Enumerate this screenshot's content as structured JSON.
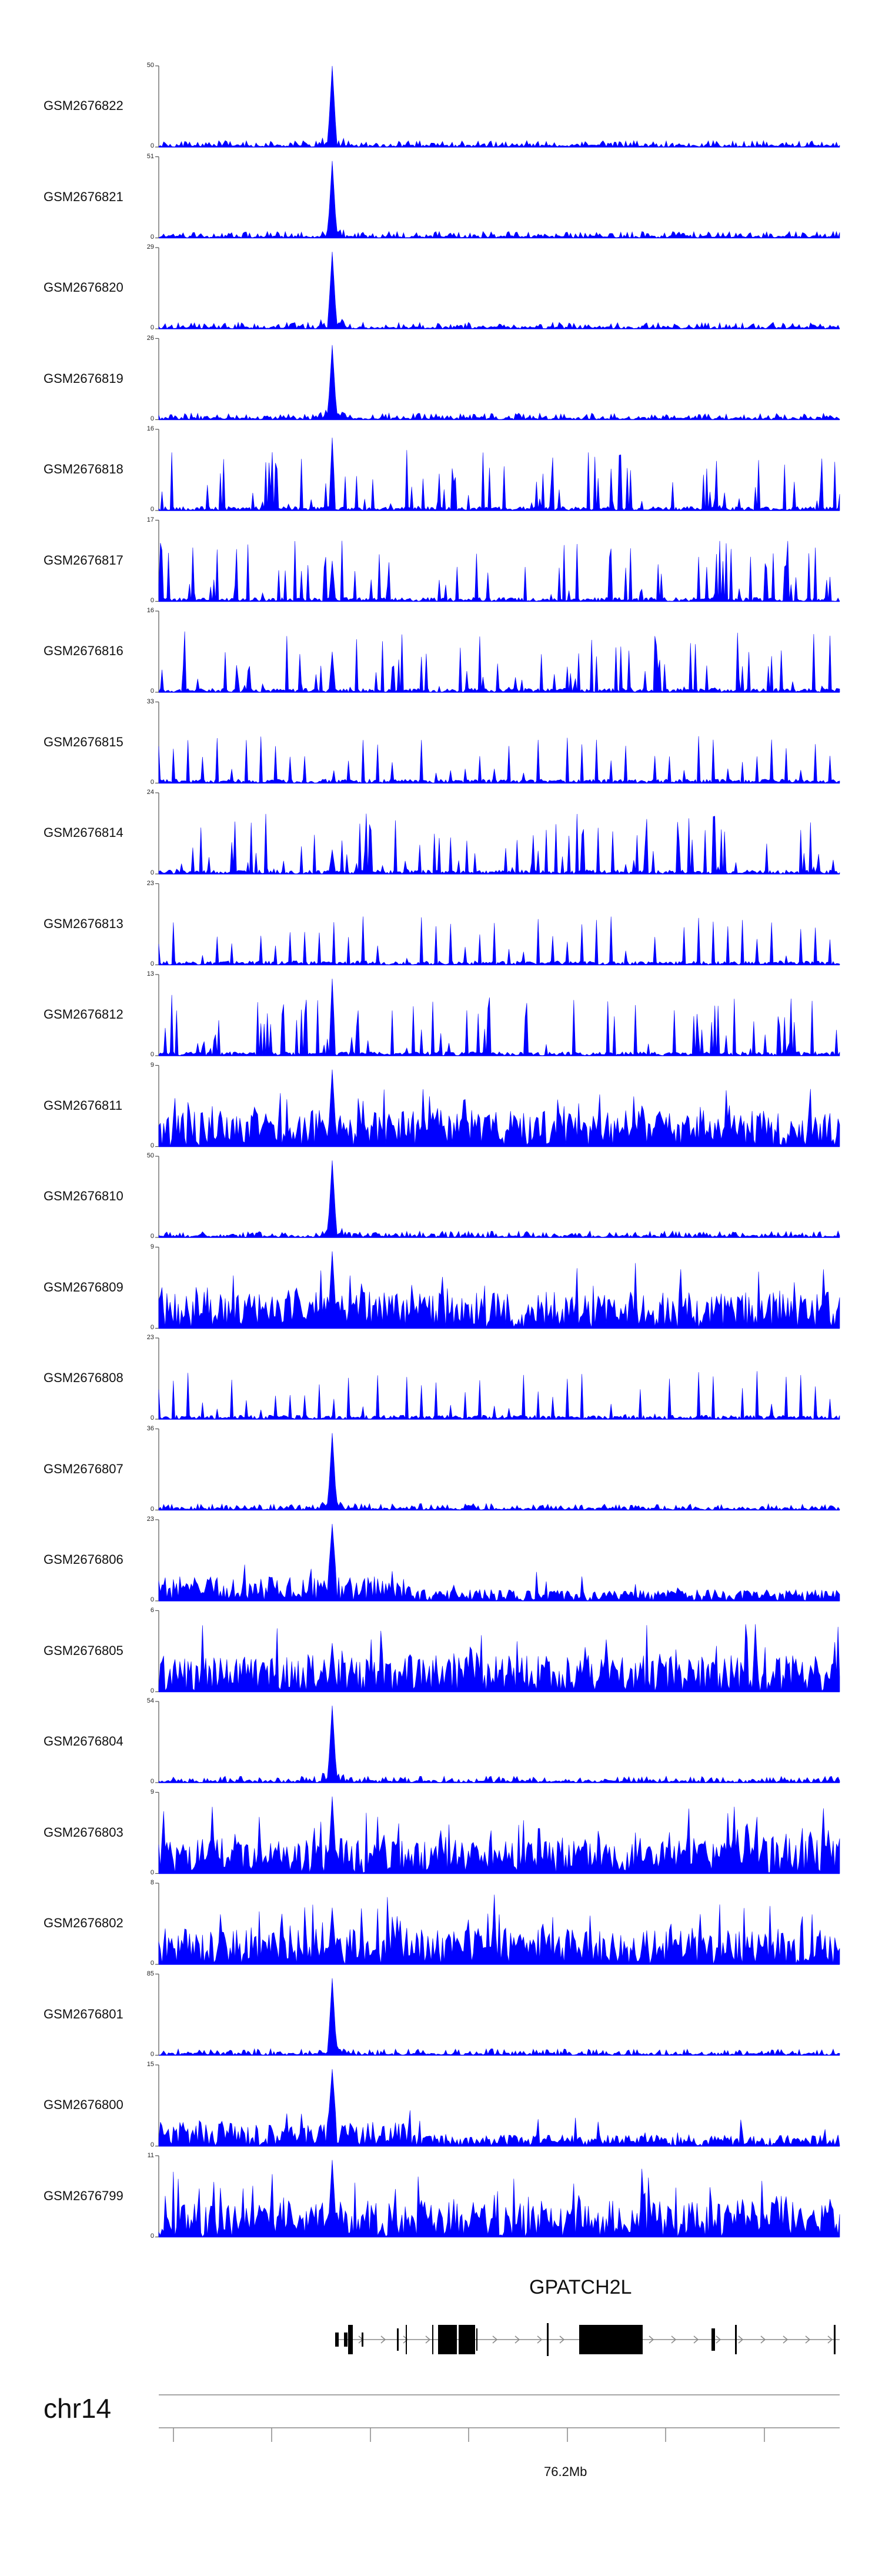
{
  "chart_data": {
    "type": "area",
    "title": "",
    "color_fill": "#0000ff",
    "color_axis": "#555555",
    "tracks": [
      {
        "name": "GSM2676822",
        "ymax": 50,
        "style": "sparse",
        "peak_height": 1.0,
        "seed": 11
      },
      {
        "name": "GSM2676821",
        "ymax": 51,
        "style": "sparse",
        "peak_height": 0.95,
        "seed": 12
      },
      {
        "name": "GSM2676820",
        "ymax": 29,
        "style": "sparse",
        "peak_height": 0.95,
        "seed": 13
      },
      {
        "name": "GSM2676819",
        "ymax": 26,
        "style": "sparse",
        "peak_height": 0.92,
        "seed": 14
      },
      {
        "name": "GSM2676818",
        "ymax": 16,
        "style": "spiky",
        "peak_height": 0.9,
        "seed": 15
      },
      {
        "name": "GSM2676817",
        "ymax": 17,
        "style": "spiky",
        "peak_height": 0.5,
        "seed": 16
      },
      {
        "name": "GSM2676816",
        "ymax": 16,
        "style": "spiky",
        "peak_height": 0.5,
        "seed": 17
      },
      {
        "name": "GSM2676815",
        "ymax": 33,
        "style": "triangles",
        "peak_height": 0.4,
        "seed": 18
      },
      {
        "name": "GSM2676814",
        "ymax": 24,
        "style": "spiky",
        "peak_height": 0.3,
        "seed": 19
      },
      {
        "name": "GSM2676813",
        "ymax": 23,
        "style": "triangles",
        "peak_height": 0.5,
        "seed": 20
      },
      {
        "name": "GSM2676812",
        "ymax": 13,
        "style": "spiky",
        "peak_height": 0.95,
        "seed": 21
      },
      {
        "name": "GSM2676811",
        "ymax": 9,
        "style": "dense",
        "peak_height": 0.95,
        "seed": 22
      },
      {
        "name": "GSM2676810",
        "ymax": 50,
        "style": "sparse",
        "peak_height": 0.95,
        "seed": 23
      },
      {
        "name": "GSM2676809",
        "ymax": 9,
        "style": "dense",
        "peak_height": 0.95,
        "seed": 24
      },
      {
        "name": "GSM2676808",
        "ymax": 23,
        "style": "triangles",
        "peak_height": 0.7,
        "seed": 25
      },
      {
        "name": "GSM2676807",
        "ymax": 36,
        "style": "sparse",
        "peak_height": 0.95,
        "seed": 26
      },
      {
        "name": "GSM2676806",
        "ymax": 23,
        "style": "medium",
        "peak_height": 0.95,
        "seed": 27
      },
      {
        "name": "GSM2676805",
        "ymax": 6,
        "style": "dense",
        "peak_height": 0.6,
        "seed": 28
      },
      {
        "name": "GSM2676804",
        "ymax": 54,
        "style": "sparse",
        "peak_height": 0.95,
        "seed": 29
      },
      {
        "name": "GSM2676803",
        "ymax": 9,
        "style": "dense",
        "peak_height": 0.95,
        "seed": 30
      },
      {
        "name": "GSM2676802",
        "ymax": 8,
        "style": "dense",
        "peak_height": 0.7,
        "seed": 31
      },
      {
        "name": "GSM2676801",
        "ymax": 85,
        "style": "sparse",
        "peak_height": 0.95,
        "seed": 32
      },
      {
        "name": "GSM2676800",
        "ymax": 15,
        "style": "medium",
        "peak_height": 0.95,
        "seed": 33
      },
      {
        "name": "GSM2676799",
        "ymax": 11,
        "style": "dense",
        "peak_height": 0.95,
        "seed": 34
      }
    ],
    "ymin_label": "0",
    "gene": {
      "name": "GPATCH2L",
      "strand": "+"
    },
    "chromosome": "chr14",
    "position_label": "76.2Mb"
  }
}
